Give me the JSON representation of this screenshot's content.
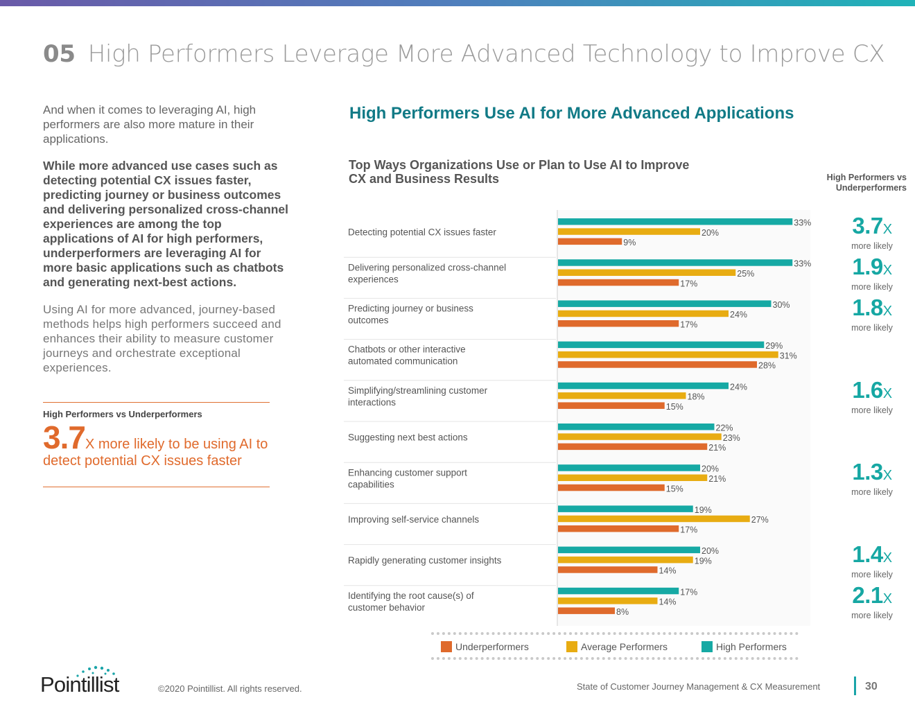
{
  "header": {
    "section_number": "05",
    "title": "High Performers Leverage More Advanced Technology to Improve CX"
  },
  "left": {
    "intro": " And when it comes to leveraging AI, high performers are also more mature in their applications.",
    "bold_paragraph": "While more advanced use cases such as detecting potential CX issues faster, predicting journey or business outcomes and delivering personalized cross-channel experiences are among the top applications of AI for high performers, underperformers are leveraging AI for more basic applications such as chatbots and generating next-best actions.",
    "closing_paragraph": "Using AI for more advanced, journey-based methods helps high performers succeed and enhances their ability to measure customer journeys and orchestrate exceptional experiences.",
    "stat": {
      "label": "High Performers vs Underperformers",
      "value": "3.7",
      "suffix": "X more likely to be using AI to detect potential CX issues faster"
    }
  },
  "chart_heading": "High Performers Use AI for More Advanced Applications",
  "side_header": "High Performers vs Underperformers",
  "chart_data": {
    "type": "bar",
    "orientation": "horizontal",
    "title": "Top Ways Organizations Use or Plan to Use AI to Improve CX and Business Results",
    "xlim": [
      0,
      35
    ],
    "categories": [
      "Detecting potential CX issues faster",
      "Delivering personalized cross-channel experiences",
      "Predicting journey or business outcomes",
      "Chatbots or other interactive automated communication",
      "Simplifying/streamlining customer interactions",
      "Suggesting next best actions",
      "Enhancing customer support capabilities",
      "Improving self-service channels",
      "Rapidly generating customer insights",
      "Identifying the root cause(s) of customer behavior"
    ],
    "series": [
      {
        "name": "High Performers",
        "color": "#16a9a4",
        "values": [
          33,
          33,
          30,
          29,
          24,
          22,
          20,
          19,
          20,
          17
        ]
      },
      {
        "name": "Average Performers",
        "color": "#e8ac12",
        "values": [
          20,
          25,
          24,
          31,
          18,
          23,
          21,
          27,
          19,
          14
        ]
      },
      {
        "name": "Underperformers",
        "color": "#df6a2c",
        "values": [
          9,
          17,
          17,
          28,
          15,
          21,
          15,
          17,
          14,
          8
        ]
      }
    ],
    "legend": [
      "Underperformers",
      "Average Performers",
      "High Performers"
    ],
    "ratios": [
      {
        "value": "3.7",
        "unit": "X",
        "label": "more likely",
        "row": 0
      },
      {
        "value": "1.9",
        "unit": "X",
        "label": "more likely",
        "row": 1
      },
      {
        "value": "1.8",
        "unit": "X",
        "label": "more likely",
        "row": 2
      },
      {
        "value": "1.6",
        "unit": "X",
        "label": "more likely",
        "row": 4
      },
      {
        "value": "1.3",
        "unit": "X",
        "label": "more likely",
        "row": 6
      },
      {
        "value": "1.4",
        "unit": "X",
        "label": "more likely",
        "row": 8
      },
      {
        "value": "2.1",
        "unit": "X",
        "label": "more likely",
        "row": 9
      }
    ]
  },
  "footer": {
    "logo_text": "Pointillist",
    "copyright": "©2020 Pointillist. All rights reserved.",
    "report_title": "State of Customer Journey Management & CX Measurement",
    "page_number": "30"
  },
  "colors": {
    "teal": "#16a9a4",
    "gold": "#e8ac12",
    "orange": "#df6a2c",
    "heading": "#117a86"
  }
}
